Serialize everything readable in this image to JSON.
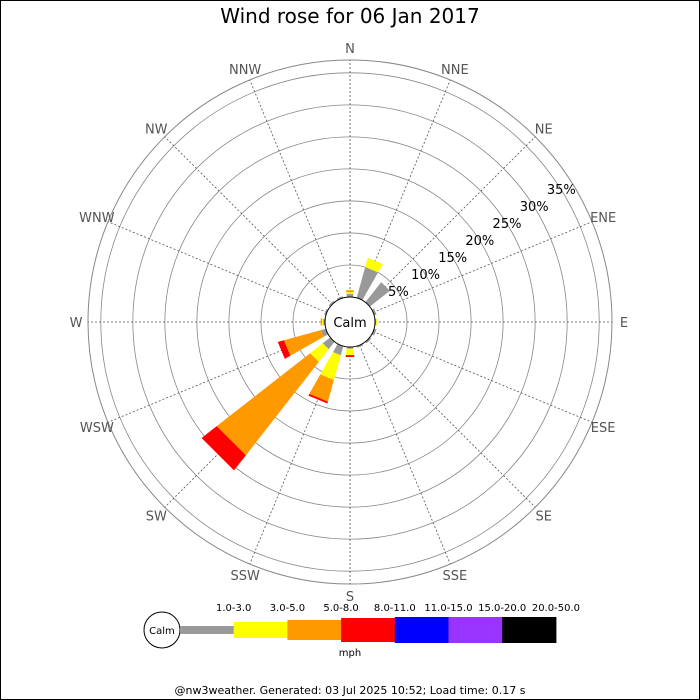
{
  "chart_data": {
    "type": "wind-rose",
    "title": "Wind rose for 06 Jan 2017",
    "directions": [
      "N",
      "NNE",
      "NE",
      "ENE",
      "E",
      "ESE",
      "SE",
      "SSE",
      "S",
      "SSW",
      "SW",
      "WSW",
      "W",
      "WNW",
      "NW",
      "NNW"
    ],
    "ring_labels": [
      "5%",
      "10%",
      "15%",
      "20%",
      "25%",
      "30%",
      "35%"
    ],
    "rings": [
      5,
      10,
      15,
      20,
      25,
      30,
      35
    ],
    "rmax": 37,
    "calm_label": "Calm",
    "speed_bins": [
      {
        "range": "1.0-3.0",
        "color": "#999999"
      },
      {
        "range": "3.0-5.0",
        "color": "#ffff00"
      },
      {
        "range": "5.0-8.0",
        "color": "#ff9900"
      },
      {
        "range": "8.0-11.0",
        "color": "#ff0000"
      },
      {
        "range": "11.0-15.0",
        "color": "#0000ff"
      },
      {
        "range": "15.0-20.0",
        "color": "#9933ff"
      },
      {
        "range": "20.0-50.0",
        "color": "#000000"
      }
    ],
    "unit": "mph",
    "frequencies_percent": [
      [
        0.5,
        0.3,
        0.3,
        0,
        0,
        0,
        0
      ],
      [
        5.0,
        1.5,
        0,
        0,
        0,
        0,
        0
      ],
      [
        4.0,
        0,
        0,
        0,
        0,
        0,
        0
      ],
      [
        0.4,
        0,
        0,
        0,
        0,
        0,
        0
      ],
      [
        0.2,
        0.2,
        0,
        0,
        0,
        0,
        0
      ],
      [
        0.4,
        0,
        0,
        0,
        0,
        0,
        0
      ],
      [
        0.3,
        0,
        0,
        0,
        0,
        0,
        0
      ],
      [
        0.3,
        0,
        0,
        0,
        0,
        0,
        0
      ],
      [
        0.3,
        1.0,
        0,
        0.3,
        0,
        0,
        0
      ],
      [
        1.5,
        4.0,
        3.5,
        0.3,
        0,
        0,
        0
      ],
      [
        1.5,
        2.5,
        18.5,
        3.0,
        0,
        0,
        0
      ],
      [
        0.8,
        0,
        6.0,
        1.0,
        0,
        0,
        0
      ],
      [
        0.3,
        0.2,
        0.2,
        0,
        0,
        0,
        0
      ],
      [
        0.3,
        0,
        0,
        0,
        0,
        0,
        0
      ],
      [
        0.3,
        0,
        0,
        0,
        0,
        0,
        0
      ],
      [
        0.3,
        0,
        0,
        0,
        0,
        0,
        0
      ]
    ]
  },
  "footer": "@nw3weather. Generated: 03 Jul 2025 10:52; Load time: 0.17 s"
}
